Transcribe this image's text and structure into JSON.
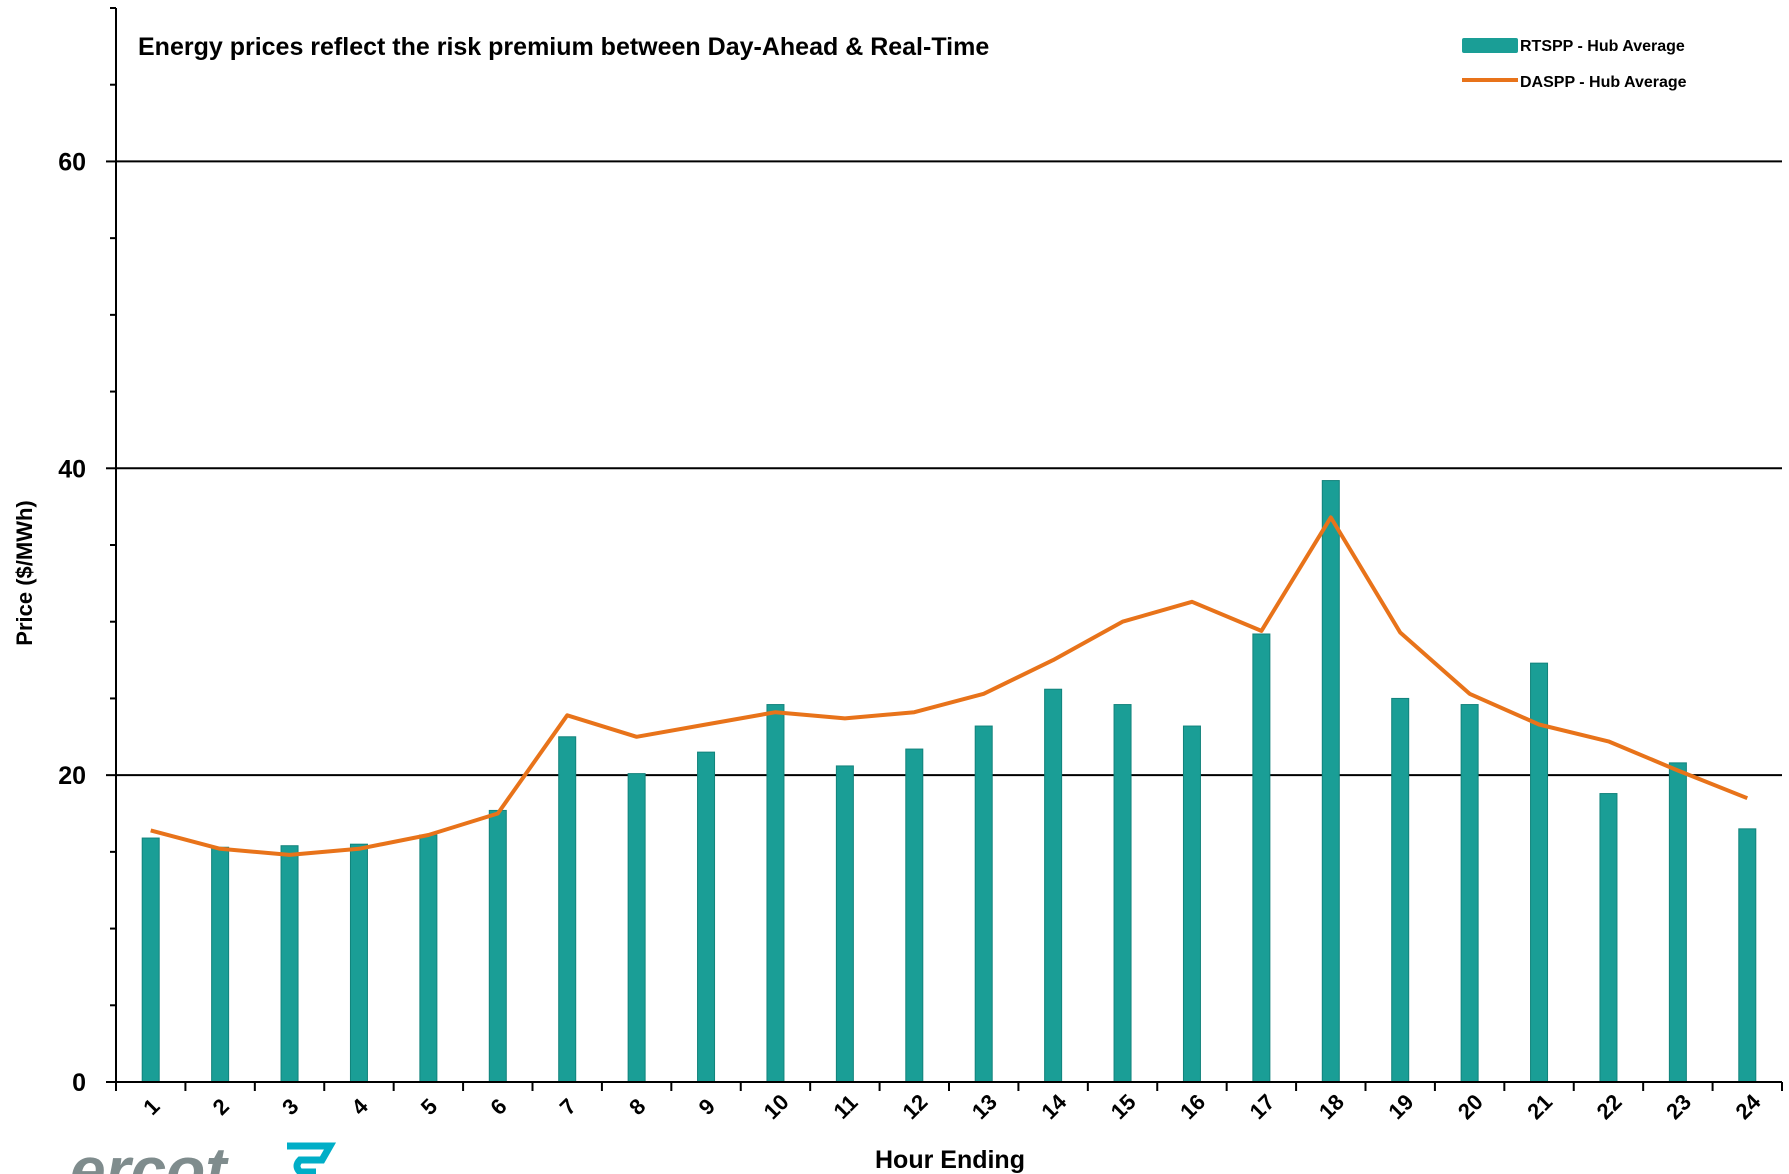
{
  "chart_data": {
    "type": "bar",
    "annotation": "Energy prices reflect the risk premium between Day-Ahead & Real-Time",
    "xlabel": "Hour Ending",
    "ylabel": "Price ($/MWh)",
    "ylim": [
      0,
      70
    ],
    "yticks": [
      0,
      20,
      40,
      60
    ],
    "grid": "horizontal major",
    "legend_position": "top-right",
    "categories": [
      "1",
      "2",
      "3",
      "4",
      "5",
      "6",
      "7",
      "8",
      "9",
      "10",
      "11",
      "12",
      "13",
      "14",
      "15",
      "16",
      "17",
      "18",
      "19",
      "20",
      "21",
      "22",
      "23",
      "24"
    ],
    "series": [
      {
        "name": "RTSPP - Hub Average",
        "type": "bar",
        "color": "#1a9e96",
        "values": [
          15.9,
          15.3,
          15.4,
          15.5,
          16.1,
          17.7,
          22.5,
          20.1,
          21.5,
          24.6,
          20.6,
          21.7,
          23.2,
          25.6,
          24.6,
          23.2,
          29.2,
          39.2,
          25.0,
          24.6,
          27.3,
          18.8,
          20.8,
          16.5
        ]
      },
      {
        "name": "DASPP - Hub Average",
        "type": "line",
        "color": "#e8731a",
        "values": [
          16.4,
          15.2,
          14.8,
          15.2,
          16.1,
          17.5,
          23.9,
          22.5,
          23.3,
          24.1,
          23.7,
          24.1,
          25.3,
          27.5,
          30.0,
          31.3,
          29.4,
          36.8,
          29.3,
          25.3,
          23.3,
          22.2,
          20.3,
          18.5
        ]
      }
    ]
  },
  "logo": {
    "text": "ercot",
    "accent_color": "#00aec7"
  }
}
